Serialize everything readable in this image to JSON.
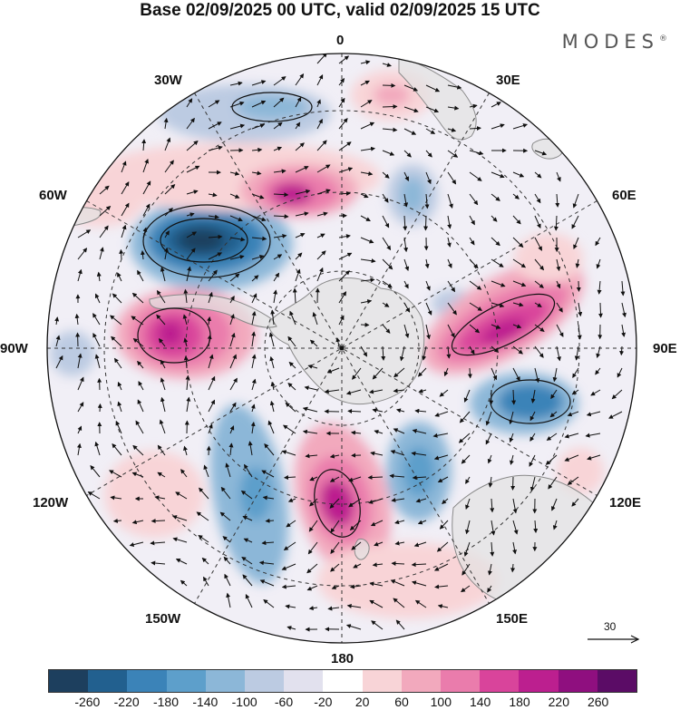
{
  "title": "Base 02/09/2025 00 UTC, valid 02/09/2025 15 UTC",
  "brand": {
    "name": "MODES",
    "mark": "®"
  },
  "map": {
    "projection": "south-polar-stereographic",
    "longitude_labels": {
      "top": "0",
      "top_right": "30E",
      "right_upper": "60E",
      "right": "90E",
      "right_lower": "120E",
      "bottom_right": "150E",
      "bottom": "180",
      "bottom_left": "150W",
      "left_lower": "120W",
      "left": "90W",
      "left_upper": "60W",
      "top_left": "30W"
    }
  },
  "colorbar": {
    "colors": [
      "#1d3f5e",
      "#22608f",
      "#3b83b8",
      "#5d9fcb",
      "#8cb7d8",
      "#bccbe2",
      "#e2e1ee",
      "#ffffff",
      "#f8d4d7",
      "#f2a9bd",
      "#ea7cac",
      "#d9449b",
      "#bc1f8f",
      "#8f0f7f",
      "#5b0c66"
    ],
    "ticks": [
      "-260",
      "-220",
      "-180",
      "-140",
      "-100",
      "-60",
      "-20",
      "20",
      "60",
      "100",
      "140",
      "180",
      "220",
      "260"
    ]
  },
  "reference_vector": {
    "value": "30"
  },
  "colors": {
    "land": "#e3e3e3",
    "coast": "#8a8a8a",
    "grid": "#333333"
  }
}
